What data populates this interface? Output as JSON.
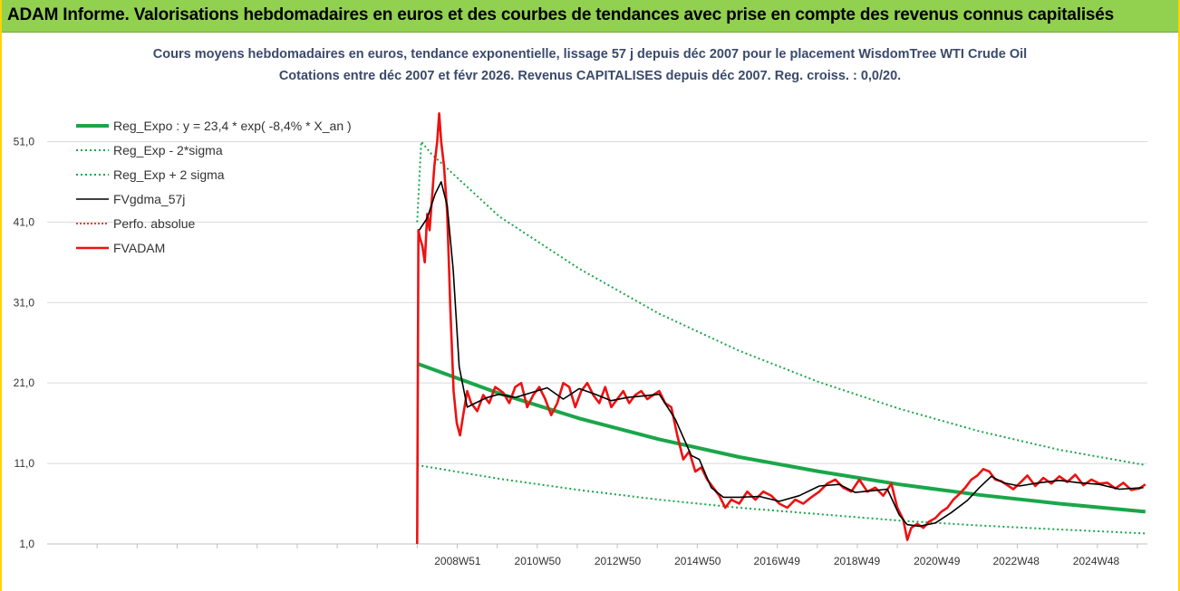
{
  "banner": {
    "title": "ADAM Informe. Valorisations hebdomadaires en euros et des courbes de tendances avec prise en compte des revenus connus capitalisés"
  },
  "colors": {
    "banner_bg": "#92d050",
    "reg_expo": "#1aa64a",
    "sigma": "#1aa64a",
    "fvgdma": "#000000",
    "perfo": "#e00000",
    "fvadam": "#ee1111",
    "title_text": "#3b4a6b",
    "grid": "#d9d9d9"
  },
  "chart_data": {
    "type": "line",
    "title_line1": "Cours moyens hebdomadaires en euros, tendance exponentielle, lissage 57 j depuis déc 2007 pour le placement WisdomTree WTI Crude Oil",
    "title_line2": "Cotations entre déc 2007 et févr 2026. Revenus CAPITALISES depuis déc 2007. Reg. croiss. : 0,0/20.",
    "xlabel": "",
    "ylabel": "",
    "ylim": [
      1,
      56
    ],
    "y_ticks": [
      "1,0",
      "11,0",
      "21,0",
      "31,0",
      "41,0",
      "51,0"
    ],
    "x_tick_labels": [
      "2008W51",
      "2010W50",
      "2012W50",
      "2014W50",
      "2016W49",
      "2018W49",
      "2020W49",
      "2022W48",
      "2024W48"
    ],
    "x_tick_years": [
      2008.96,
      2010.96,
      2012.96,
      2014.96,
      2016.94,
      2018.94,
      2020.94,
      2022.92,
      2024.92
    ],
    "xlim": [
      1998.7,
      2026.2
    ],
    "grid": true,
    "legend_position": "top-left",
    "series": [
      {
        "name": "Reg_Expo : y = 23,4 * exp( -8,4% *  X_an )",
        "style": "solid-thick",
        "x": [
          2007.95,
          2010,
          2012,
          2014,
          2016,
          2018,
          2020,
          2022,
          2024,
          2026.15
        ],
        "y": [
          23.4,
          19.7,
          16.6,
          14.0,
          11.8,
          10.0,
          8.4,
          7.1,
          6.0,
          5.0
        ]
      },
      {
        "name": "Reg_Exp - 2*sigma",
        "style": "dotted",
        "x": [
          2007.95,
          2010,
          2012,
          2014,
          2016,
          2018,
          2020,
          2022,
          2024,
          2026.15
        ],
        "y": [
          10.8,
          9.1,
          7.7,
          6.5,
          5.5,
          4.7,
          3.9,
          3.3,
          2.8,
          2.3
        ]
      },
      {
        "name": "Reg_Exp + 2 sigma",
        "style": "dotted",
        "x": [
          2007.95,
          2008.05,
          2008.3,
          2010,
          2012,
          2014,
          2016,
          2018,
          2020,
          2022,
          2024,
          2026.15
        ],
        "y": [
          41.0,
          51.0,
          49.5,
          41.7,
          35.2,
          29.6,
          25.0,
          21.1,
          17.8,
          15.0,
          12.7,
          10.8
        ]
      },
      {
        "name": "FVgdma_57j",
        "style": "solid",
        "x": [
          2008.0,
          2008.2,
          2008.4,
          2008.55,
          2008.7,
          2008.85,
          2009.0,
          2009.2,
          2009.4,
          2009.7,
          2010.0,
          2010.4,
          2010.8,
          2011.2,
          2011.6,
          2012.0,
          2012.4,
          2012.8,
          2013.2,
          2013.6,
          2014.0,
          2014.4,
          2014.8,
          2015.0,
          2015.3,
          2015.6,
          2016.0,
          2016.5,
          2017.0,
          2017.5,
          2018.0,
          2018.5,
          2018.9,
          2019.3,
          2019.7,
          2020.0,
          2020.2,
          2020.5,
          2020.9,
          2021.3,
          2021.7,
          2022.0,
          2022.3,
          2022.6,
          2023.0,
          2023.5,
          2024.0,
          2024.5,
          2025.0,
          2025.5,
          2026.1
        ],
        "y": [
          40.0,
          41.5,
          44.5,
          46.0,
          43.0,
          35.0,
          23.0,
          18.0,
          18.5,
          19.2,
          19.6,
          19.2,
          19.8,
          20.4,
          19.0,
          20.3,
          19.6,
          18.8,
          19.2,
          19.4,
          19.6,
          16.5,
          12.0,
          11.5,
          8.0,
          6.8,
          6.8,
          6.9,
          6.3,
          7.0,
          8.2,
          8.4,
          7.4,
          7.6,
          7.8,
          4.6,
          3.4,
          3.2,
          3.6,
          4.9,
          6.4,
          8.0,
          9.4,
          8.6,
          8.2,
          8.6,
          8.9,
          8.6,
          8.4,
          7.8,
          8.0
        ]
      },
      {
        "name": "Perfo. absolue",
        "style": "dotted",
        "x": [],
        "y": []
      },
      {
        "name": "FVADAM",
        "style": "solid-thick",
        "x": [
          2007.95,
          2007.98,
          2008.02,
          2008.08,
          2008.14,
          2008.2,
          2008.26,
          2008.32,
          2008.38,
          2008.45,
          2008.5,
          2008.55,
          2008.62,
          2008.7,
          2008.78,
          2008.86,
          2008.94,
          2009.02,
          2009.1,
          2009.2,
          2009.3,
          2009.45,
          2009.6,
          2009.75,
          2009.9,
          2010.1,
          2010.25,
          2010.4,
          2010.55,
          2010.7,
          2010.85,
          2011.0,
          2011.15,
          2011.3,
          2011.45,
          2011.6,
          2011.75,
          2011.9,
          2012.05,
          2012.2,
          2012.35,
          2012.5,
          2012.65,
          2012.8,
          2012.95,
          2013.1,
          2013.25,
          2013.4,
          2013.55,
          2013.7,
          2013.85,
          2014.0,
          2014.15,
          2014.3,
          2014.45,
          2014.6,
          2014.75,
          2014.9,
          2015.05,
          2015.2,
          2015.35,
          2015.5,
          2015.65,
          2015.8,
          2016.0,
          2016.2,
          2016.4,
          2016.6,
          2016.8,
          2017.0,
          2017.2,
          2017.4,
          2017.6,
          2017.8,
          2018.0,
          2018.2,
          2018.4,
          2018.6,
          2018.8,
          2019.0,
          2019.2,
          2019.4,
          2019.6,
          2019.8,
          2019.95,
          2020.1,
          2020.2,
          2020.3,
          2020.45,
          2020.6,
          2020.75,
          2020.9,
          2021.05,
          2021.2,
          2021.35,
          2021.5,
          2021.65,
          2021.8,
          2021.95,
          2022.1,
          2022.25,
          2022.4,
          2022.55,
          2022.7,
          2022.85,
          2023.0,
          2023.2,
          2023.4,
          2023.6,
          2023.8,
          2024.0,
          2024.2,
          2024.4,
          2024.6,
          2024.8,
          2025.0,
          2025.2,
          2025.4,
          2025.6,
          2025.8,
          2026.0,
          2026.15
        ],
        "y": [
          1.0,
          40.0,
          39.0,
          38.0,
          36.0,
          42.0,
          40.0,
          44.0,
          48.0,
          51.0,
          54.5,
          51.0,
          48.0,
          42.0,
          30.0,
          20.0,
          16.0,
          14.5,
          17.0,
          20.0,
          18.5,
          17.5,
          19.5,
          18.5,
          20.5,
          19.8,
          18.5,
          20.5,
          21.0,
          18.0,
          19.5,
          20.5,
          19.0,
          17.0,
          18.5,
          21.0,
          20.5,
          18.0,
          20.0,
          21.0,
          19.5,
          18.5,
          20.5,
          18.0,
          19.0,
          20.0,
          18.5,
          19.5,
          20.0,
          19.0,
          19.5,
          20.0,
          18.5,
          18.0,
          14.5,
          11.5,
          12.5,
          10.0,
          10.5,
          9.0,
          8.0,
          7.0,
          5.5,
          6.5,
          6.0,
          7.5,
          6.5,
          7.5,
          7.0,
          6.0,
          5.5,
          6.5,
          6.0,
          6.8,
          7.5,
          8.5,
          9.0,
          8.0,
          7.5,
          9.0,
          7.5,
          8.0,
          7.0,
          8.5,
          5.5,
          4.0,
          1.5,
          3.0,
          3.5,
          3.0,
          3.8,
          4.2,
          5.0,
          5.5,
          6.5,
          7.2,
          8.0,
          9.0,
          9.5,
          10.3,
          10.0,
          9.0,
          8.8,
          8.3,
          7.8,
          8.5,
          9.5,
          8.2,
          9.2,
          8.5,
          9.4,
          8.7,
          9.6,
          8.3,
          9.0,
          8.5,
          8.6,
          7.9,
          8.6,
          7.7,
          7.9,
          8.4
        ]
      }
    ]
  }
}
